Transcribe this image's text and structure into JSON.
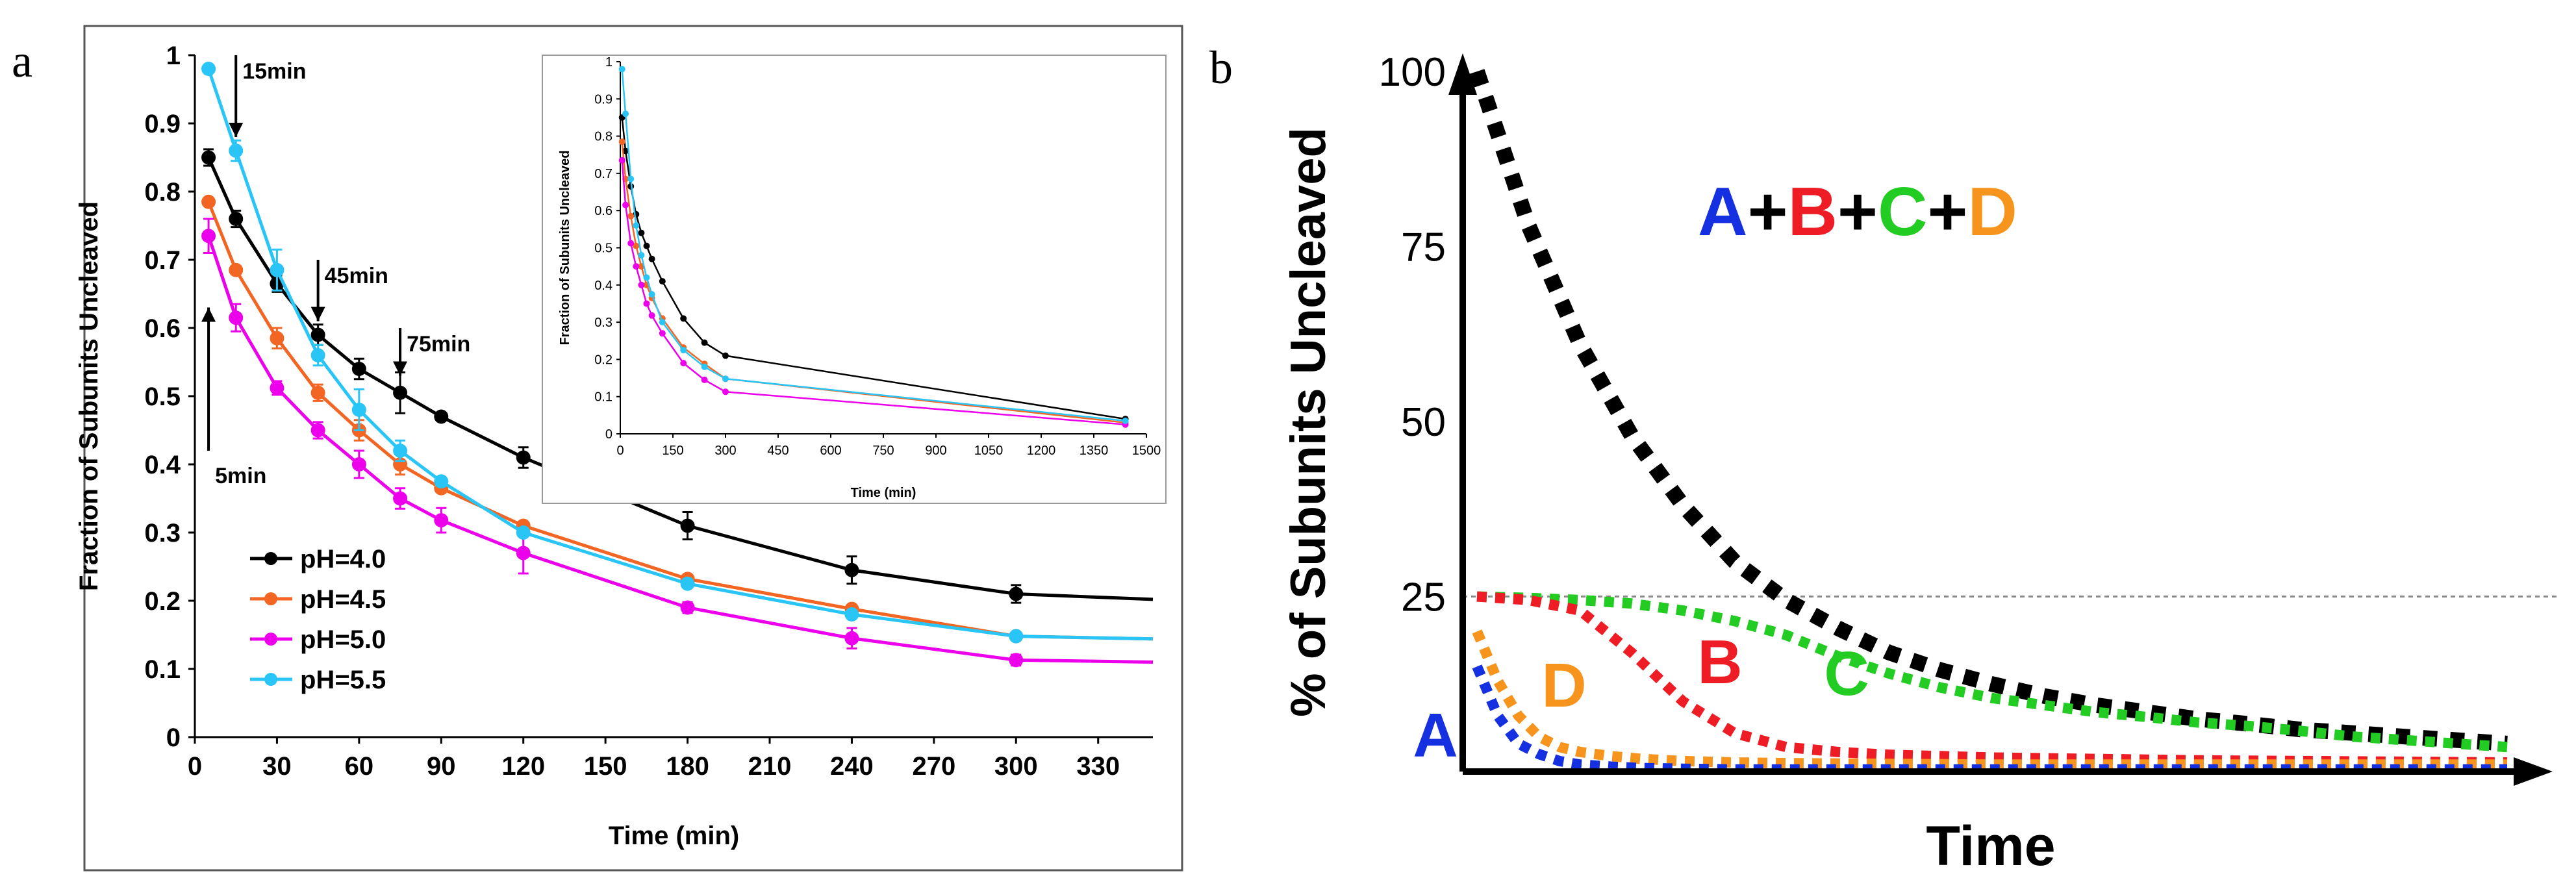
{
  "panel_labels": {
    "a": "a",
    "b": "b"
  },
  "chart_data": [
    {
      "type": "line",
      "panel": "a",
      "title": "",
      "xlabel": "Time (min)",
      "ylabel": "Fraction  of Subunits Uncleaved",
      "xlim": [
        0,
        350
      ],
      "ylim": [
        0,
        1
      ],
      "x_ticks": [
        0,
        30,
        60,
        90,
        120,
        150,
        180,
        210,
        240,
        270,
        300,
        330
      ],
      "y_ticks": [
        0,
        0.1,
        0.2,
        0.3,
        0.4,
        0.5,
        0.6,
        0.7,
        0.8,
        0.9,
        1
      ],
      "x_tick_labels": [
        "0",
        "30",
        "60",
        "90",
        "120",
        "150",
        "180",
        "210",
        "240",
        "270",
        "300",
        "330"
      ],
      "y_tick_labels": [
        "0",
        "0.1",
        "0.2",
        "0.3",
        "0.4",
        "0.5",
        "0.6",
        "0.7",
        "0.8",
        "0.9",
        "1"
      ],
      "series": [
        {
          "name": "pH=4.0",
          "color": "#000000",
          "x": [
            5,
            15,
            30,
            45,
            60,
            75,
            90,
            120,
            180,
            240,
            300,
            350
          ],
          "values": [
            0.85,
            0.76,
            0.665,
            0.59,
            0.54,
            0.505,
            0.47,
            0.41,
            0.31,
            0.245,
            0.21,
            0.202
          ],
          "errors": [
            0.012,
            0.012,
            0.012,
            0.015,
            0.015,
            0.03,
            0.0,
            0.015,
            0.02,
            0.02,
            0.013,
            0.0
          ]
        },
        {
          "name": "pH=4.5",
          "color": "#f26522",
          "x": [
            5,
            15,
            30,
            45,
            60,
            75,
            90,
            120,
            180,
            240,
            300,
            350
          ],
          "values": [
            0.785,
            0.685,
            0.585,
            0.505,
            0.45,
            0.4,
            0.365,
            0.31,
            0.232,
            0.188,
            0.148,
            0.144
          ],
          "errors": [
            0.0,
            0.0,
            0.015,
            0.012,
            0.015,
            0.015,
            0.0,
            0.0,
            0.0,
            0.0,
            0.0,
            0.0
          ]
        },
        {
          "name": "pH=5.0",
          "color": "#ec00ec",
          "x": [
            5,
            15,
            30,
            45,
            60,
            75,
            90,
            120,
            180,
            240,
            300,
            350
          ],
          "values": [
            0.735,
            0.615,
            0.512,
            0.45,
            0.4,
            0.35,
            0.318,
            0.27,
            0.19,
            0.145,
            0.113,
            0.11
          ],
          "errors": [
            0.025,
            0.02,
            0.01,
            0.012,
            0.02,
            0.015,
            0.018,
            0.03,
            0.008,
            0.015,
            0.008,
            0.0
          ]
        },
        {
          "name": "pH=5.5",
          "color": "#29c5f6",
          "x": [
            5,
            15,
            30,
            45,
            60,
            75,
            90,
            120,
            180,
            240,
            300,
            350
          ],
          "values": [
            0.98,
            0.86,
            0.685,
            0.56,
            0.48,
            0.42,
            0.375,
            0.3,
            0.225,
            0.18,
            0.148,
            0.144
          ],
          "errors": [
            0.0,
            0.015,
            0.03,
            0.015,
            0.03,
            0.015,
            0.0,
            0.0,
            0.0,
            0.0,
            0.0,
            0.0
          ]
        }
      ],
      "legend": {
        "placement": "bottom-left",
        "entries": [
          "pH=4.0",
          "pH=4.5",
          "pH=5.0",
          "pH=5.5"
        ]
      },
      "annotations": [
        {
          "text": "15min",
          "x": 15,
          "y_from": 1.0,
          "y_to": 0.88,
          "direction": "down"
        },
        {
          "text": "45min",
          "x": 45,
          "y_from": 0.7,
          "y_to": 0.61,
          "direction": "down"
        },
        {
          "text": "75min",
          "x": 75,
          "y_from": 0.6,
          "y_to": 0.53,
          "direction": "down"
        },
        {
          "text": "5min",
          "x": 5,
          "y_from": 0.42,
          "y_to": 0.63,
          "direction": "up"
        }
      ]
    },
    {
      "type": "line",
      "panel": "a-inset",
      "title": "",
      "xlabel": "Time (min)",
      "ylabel": "Fraction of Subunits Uncleaved",
      "xlim": [
        0,
        1500
      ],
      "ylim": [
        0,
        1
      ],
      "x_ticks": [
        0,
        150,
        300,
        450,
        600,
        750,
        900,
        1050,
        1200,
        1350,
        1500
      ],
      "y_ticks": [
        0,
        0.1,
        0.2,
        0.3,
        0.4,
        0.5,
        0.6,
        0.7,
        0.8,
        0.9,
        1
      ],
      "x_tick_labels": [
        "0",
        "150",
        "300",
        "450",
        "600",
        "750",
        "900",
        "1050",
        "1200",
        "1350",
        "1500"
      ],
      "y_tick_labels": [
        "0",
        "0.1",
        "0.2",
        "0.3",
        "0.4",
        "0.5",
        "0.6",
        "0.7",
        "0.8",
        "0.9",
        "1"
      ],
      "series": [
        {
          "name": "pH=4.0",
          "color": "#000000",
          "x": [
            5,
            15,
            30,
            45,
            60,
            75,
            90,
            120,
            180,
            240,
            300,
            1440
          ],
          "values": [
            0.85,
            0.76,
            0.665,
            0.59,
            0.54,
            0.505,
            0.47,
            0.41,
            0.31,
            0.245,
            0.21,
            0.04
          ]
        },
        {
          "name": "pH=4.5",
          "color": "#f26522",
          "x": [
            5,
            15,
            30,
            45,
            60,
            75,
            90,
            120,
            180,
            240,
            300,
            1440
          ],
          "values": [
            0.785,
            0.685,
            0.585,
            0.505,
            0.45,
            0.4,
            0.365,
            0.31,
            0.232,
            0.188,
            0.148,
            0.03
          ]
        },
        {
          "name": "pH=5.0",
          "color": "#ec00ec",
          "x": [
            5,
            15,
            30,
            45,
            60,
            75,
            90,
            120,
            180,
            240,
            300,
            1440
          ],
          "values": [
            0.735,
            0.615,
            0.512,
            0.45,
            0.4,
            0.35,
            0.318,
            0.27,
            0.19,
            0.145,
            0.113,
            0.025
          ]
        },
        {
          "name": "pH=5.5",
          "color": "#29c5f6",
          "x": [
            5,
            15,
            30,
            45,
            60,
            75,
            90,
            120,
            180,
            240,
            300,
            1440
          ],
          "values": [
            0.98,
            0.86,
            0.685,
            0.56,
            0.48,
            0.42,
            0.375,
            0.3,
            0.225,
            0.18,
            0.148,
            0.035
          ]
        }
      ]
    },
    {
      "type": "line",
      "panel": "b",
      "title": "A+B+C+D",
      "title_parts": [
        {
          "text": "A",
          "color": "#1530e0"
        },
        {
          "text": "+",
          "color": "#000000"
        },
        {
          "text": "B",
          "color": "#ee1c25"
        },
        {
          "text": "+",
          "color": "#000000"
        },
        {
          "text": "C",
          "color": "#22cc22"
        },
        {
          "text": "+",
          "color": "#000000"
        },
        {
          "text": "D",
          "color": "#f7941d"
        }
      ],
      "xlabel": "Time",
      "ylabel": "% of Subunits Uncleaved",
      "xlim": [
        0,
        100
      ],
      "ylim": [
        0,
        100
      ],
      "y_ticks": [
        25,
        50,
        75,
        100
      ],
      "y_tick_labels": [
        "25",
        "50",
        "75",
        "100"
      ],
      "reference_line_y": 25,
      "series": [
        {
          "name": "A+B+C+D",
          "color": "#000000",
          "x": [
            0,
            5,
            10,
            15,
            20,
            25,
            30,
            35,
            40,
            45,
            50,
            55,
            60,
            65,
            70,
            75,
            80,
            85,
            90,
            95,
            100
          ],
          "values": [
            100,
            78,
            61,
            48,
            38,
            30,
            24.5,
            20.5,
            17,
            14.5,
            12.5,
            10.8,
            9.5,
            8.5,
            7.5,
            6.8,
            6,
            5.5,
            5,
            4.5,
            4
          ]
        },
        {
          "name": "C",
          "color": "#22cc22",
          "label": "C",
          "x": [
            0,
            5,
            10,
            15,
            20,
            25,
            30,
            35,
            40,
            45,
            50,
            55,
            60,
            65,
            70,
            75,
            80,
            85,
            90,
            95,
            100
          ],
          "values": [
            25,
            24.8,
            24.5,
            24,
            23,
            21.5,
            19.5,
            16.5,
            14,
            12,
            10.5,
            9.5,
            8.5,
            7.8,
            7,
            6.5,
            5.8,
            5,
            4.5,
            4,
            3.5
          ]
        },
        {
          "name": "B",
          "color": "#ee1c25",
          "label": "B",
          "x": [
            0,
            5,
            10,
            15,
            20,
            25,
            30,
            35,
            40,
            45,
            50,
            60,
            70,
            80,
            90,
            100
          ],
          "values": [
            25,
            24.5,
            23,
            17,
            10,
            5.5,
            3.5,
            2.8,
            2.4,
            2.2,
            2,
            1.8,
            1.6,
            1.5,
            1.4,
            1.3
          ]
        },
        {
          "name": "D",
          "color": "#f7941d",
          "label": "D",
          "x": [
            0,
            2,
            4,
            6,
            8,
            10,
            13,
            16,
            20,
            25,
            30,
            40,
            50,
            60,
            70,
            80,
            90,
            100
          ],
          "values": [
            20,
            13,
            8,
            5,
            3.5,
            2.8,
            2.2,
            1.8,
            1.5,
            1.3,
            1.2,
            1.1,
            1,
            1,
            1,
            1,
            1,
            1
          ]
        },
        {
          "name": "A",
          "color": "#1530e0",
          "label": "A",
          "x": [
            0,
            2,
            4,
            6,
            8,
            10,
            13,
            16,
            20,
            25,
            30,
            40,
            50,
            60,
            70,
            80,
            90,
            100
          ],
          "values": [
            15,
            8,
            4,
            2.5,
            1.5,
            1,
            0.7,
            0.5,
            0.4,
            0.3,
            0.3,
            0.3,
            0.3,
            0.3,
            0.3,
            0.3,
            0.3,
            0.3
          ]
        }
      ]
    }
  ]
}
